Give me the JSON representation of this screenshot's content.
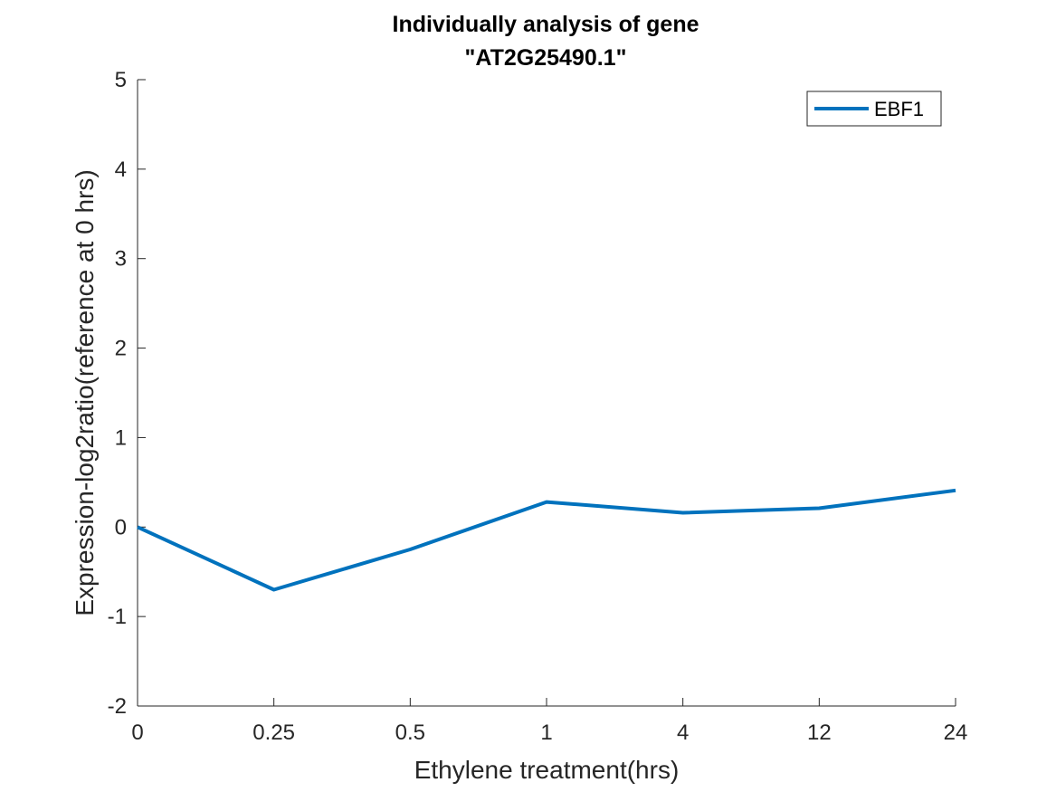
{
  "chart_data": {
    "type": "line",
    "title": [
      "Individually analysis of gene",
      "\"AT2G25490.1\""
    ],
    "xlabel": "Ethylene treatment(hrs)",
    "ylabel": "Expression-log2ratio(reference at 0 hrs)",
    "categories": [
      "0",
      "0.25",
      "0.5",
      "1",
      "4",
      "12",
      "24"
    ],
    "ylim": [
      -2,
      5
    ],
    "yticks": [
      -2,
      -1,
      0,
      1,
      2,
      3,
      4,
      5
    ],
    "grid": false,
    "legend_position": "top-right",
    "series": [
      {
        "name": "EBF1",
        "color": "#0072BD",
        "values": [
          0,
          -0.7,
          -0.25,
          0.28,
          0.16,
          0.21,
          0.41
        ]
      }
    ]
  }
}
